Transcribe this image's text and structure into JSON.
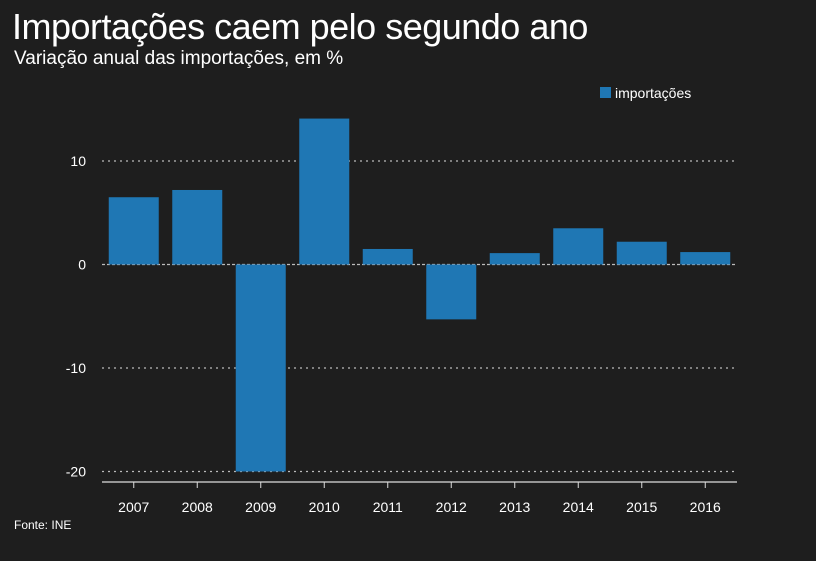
{
  "title": "Importações caem pelo segundo ano",
  "subtitle": "Variação anual das importações, em %",
  "source": "Fonte: INE",
  "colors": {
    "background": "#1e1e1e",
    "bar": "#1f77b4",
    "grid": "#bbbbbb",
    "text": "#ffffff"
  },
  "chart_data": {
    "type": "bar",
    "categories": [
      "2007",
      "2008",
      "2009",
      "2010",
      "2011",
      "2012",
      "2013",
      "2014",
      "2015",
      "2016"
    ],
    "series": [
      {
        "name": "importações",
        "values": [
          6.5,
          7.2,
          -20.0,
          14.1,
          1.5,
          -5.3,
          1.1,
          3.5,
          2.2,
          1.2
        ]
      }
    ],
    "yticks": [
      10,
      0,
      -10,
      -20
    ],
    "ylim": [
      -20,
      15
    ],
    "grid": "horizontal dotted",
    "legend": "top-right",
    "xlabel": "",
    "ylabel": ""
  }
}
